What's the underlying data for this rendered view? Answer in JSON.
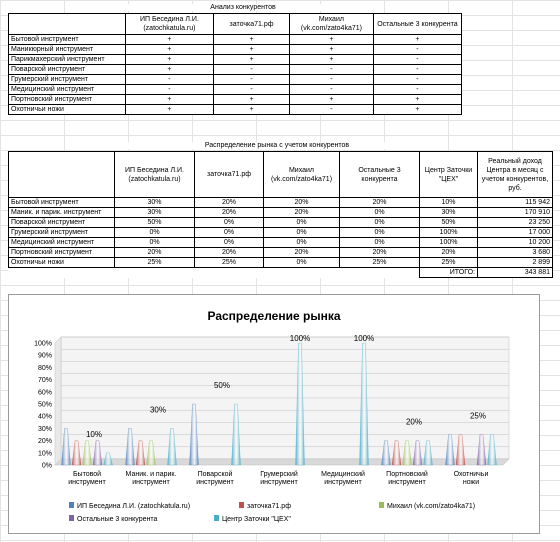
{
  "table1": {
    "title": "Анализ конкурентов",
    "headers": [
      "",
      "ИП Беседина Л.И. (zatochkatula.ru)",
      "заточка71.рф",
      "Михаил (vk.com/zato4ka71)",
      "Остальные 3 конкурента"
    ],
    "rows": [
      [
        "Бытовой инструмент",
        "+",
        "+",
        "+",
        "+"
      ],
      [
        "Маникюрный инструмент",
        "+",
        "+",
        "+",
        "-"
      ],
      [
        "Парикмахерский инструмент",
        "+",
        "+",
        "+",
        "-"
      ],
      [
        "Поварской инструмент",
        "+",
        "-",
        "-",
        "-"
      ],
      [
        "Грумерский инструмент",
        "-",
        "-",
        "-",
        "-"
      ],
      [
        "Медицинский инструмент",
        "-",
        "-",
        "-",
        "-"
      ],
      [
        "Портновский инструмент",
        "+",
        "+",
        "+",
        "+"
      ],
      [
        "Охотничьи ножи",
        "+",
        "+",
        "-",
        "+"
      ]
    ]
  },
  "table2": {
    "title": "Распределение рынка с учетом конкурентов",
    "headers": [
      "",
      "ИП Беседина Л.И. (zatochkatula.ru)",
      "заточка71.рф",
      "Михаил (vk.com/zato4ka71)",
      "Остальные 3 конкурента",
      "Центр Заточки \"ЦЕХ\"",
      "Реальный доход Центра в месяц с учетом конкурентов, руб."
    ],
    "rows": [
      [
        "Бытовой инструмент",
        "30%",
        "20%",
        "20%",
        "20%",
        "10%",
        "115 942"
      ],
      [
        "Маник. и парик. инструмент",
        "30%",
        "20%",
        "20%",
        "0%",
        "30%",
        "170 910"
      ],
      [
        "Поварской инструмент",
        "50%",
        "0%",
        "0%",
        "0%",
        "50%",
        "23 250"
      ],
      [
        "Грумерский инструмент",
        "0%",
        "0%",
        "0%",
        "0%",
        "100%",
        "17 000"
      ],
      [
        "Медицинский инструмент",
        "0%",
        "0%",
        "0%",
        "0%",
        "100%",
        "10 200"
      ],
      [
        "Портновский инструмент",
        "20%",
        "20%",
        "20%",
        "20%",
        "20%",
        "3 680"
      ],
      [
        "Охотничьи ножи",
        "25%",
        "25%",
        "0%",
        "25%",
        "25%",
        "2 899"
      ]
    ],
    "total_label": "ИТОГО:",
    "total_value": "343 881"
  },
  "chart_data": {
    "type": "bar",
    "title": "Распределение рынка",
    "categories": [
      "Бытовой инструмент",
      "Маник. и парик. инструмент",
      "Поварской инструмент",
      "Грумерский инструмент",
      "Медицинский инструмент",
      "Портновский инструмент",
      "Охотничьи ножи"
    ],
    "series": [
      {
        "name": "ИП Беседина Л.И. (zatochkatula.ru)",
        "values": [
          30,
          30,
          50,
          0,
          0,
          20,
          25
        ],
        "color": "#4f81bd"
      },
      {
        "name": "заточка71.рф",
        "values": [
          20,
          20,
          0,
          0,
          0,
          20,
          25
        ],
        "color": "#c0504d"
      },
      {
        "name": "Михаил (vk.com/zato4ka71)",
        "values": [
          20,
          20,
          0,
          0,
          0,
          20,
          0
        ],
        "color": "#9bbb59"
      },
      {
        "name": "Остальные 3 конкурента",
        "values": [
          20,
          0,
          0,
          0,
          0,
          20,
          25
        ],
        "color": "#8064a2"
      },
      {
        "name": "Центр Заточки \"ЦЕХ\"",
        "values": [
          10,
          30,
          50,
          100,
          100,
          20,
          25
        ],
        "color": "#4bacc6"
      }
    ],
    "data_labels_series": "Центр Заточки \"ЦЕХ\"",
    "data_labels": [
      "10%",
      "30%",
      "50%",
      "100%",
      "100%",
      "20%",
      "25%"
    ],
    "y_ticks": [
      "0%",
      "10%",
      "20%",
      "30%",
      "40%",
      "50%",
      "60%",
      "70%",
      "80%",
      "90%",
      "100%"
    ],
    "ylim": [
      0,
      100
    ],
    "legend_position": "bottom",
    "grid": true
  }
}
